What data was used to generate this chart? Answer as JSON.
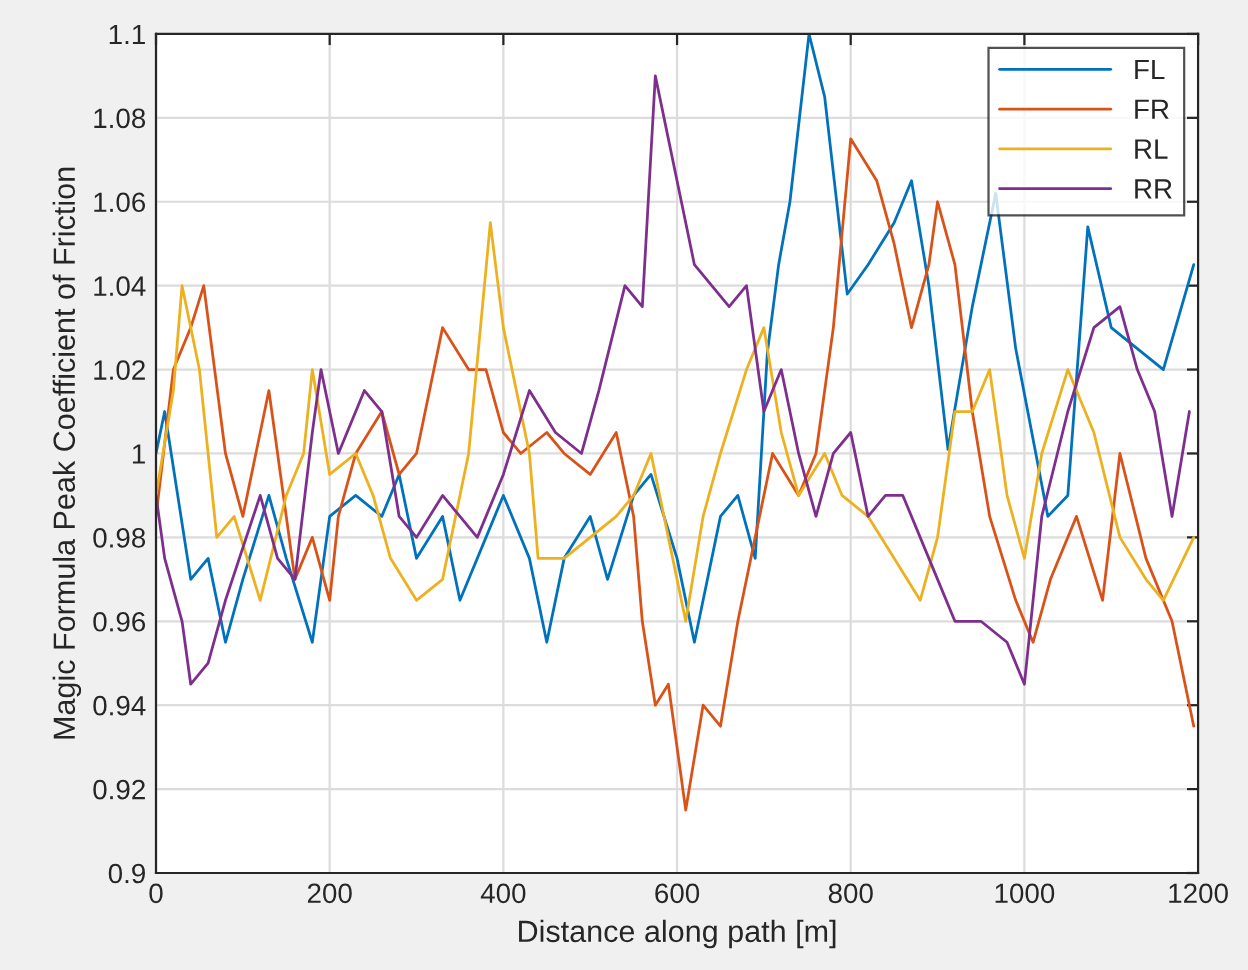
{
  "chart_data": {
    "type": "line",
    "xlabel": "Distance along path [m]",
    "ylabel": "Magic Formula Peak Coefficient of Friction",
    "xlim": [
      0,
      1200
    ],
    "xticks": [
      0,
      200,
      400,
      600,
      800,
      1000,
      1200
    ],
    "ylim": [
      0.9,
      1.1
    ],
    "yticks": [
      0.9,
      0.92,
      0.94,
      0.96,
      0.98,
      1,
      1.02,
      1.04,
      1.06,
      1.08,
      1.1
    ],
    "grid": true,
    "legend": "top right",
    "line_style": "solid",
    "marker": "none",
    "series": [
      {
        "name": "FL",
        "color": "#0072bd",
        "x": [
          0,
          10,
          40,
          60,
          80,
          100,
          130,
          150,
          180,
          200,
          230,
          260,
          280,
          300,
          330,
          350,
          380,
          400,
          430,
          450,
          470,
          500,
          520,
          550,
          570,
          600,
          620,
          650,
          670,
          690,
          704,
          717,
          730,
          752,
          770,
          796,
          820,
          850,
          870,
          890,
          912,
          940,
          967,
          990,
          1027,
          1050,
          1073,
          1100,
          1130,
          1160,
          1195
        ],
        "values": [
          1.0,
          1.01,
          0.97,
          0.975,
          0.955,
          0.97,
          0.99,
          0.975,
          0.955,
          0.985,
          0.99,
          0.985,
          0.995,
          0.975,
          0.985,
          0.965,
          0.98,
          0.99,
          0.975,
          0.955,
          0.975,
          0.985,
          0.97,
          0.99,
          0.995,
          0.975,
          0.955,
          0.985,
          0.99,
          0.975,
          1.024,
          1.045,
          1.06,
          1.1,
          1.085,
          1.038,
          1.045,
          1.055,
          1.065,
          1.04,
          1.001,
          1.035,
          1.062,
          1.025,
          0.985,
          0.99,
          1.054,
          1.03,
          1.025,
          1.02,
          1.045
        ]
      },
      {
        "name": "FR",
        "color": "#d95319",
        "x": [
          0,
          20,
          40,
          55,
          80,
          100,
          130,
          160,
          180,
          200,
          210,
          230,
          260,
          280,
          300,
          330,
          360,
          380,
          400,
          420,
          450,
          470,
          500,
          530,
          550,
          560,
          575,
          590,
          610,
          630,
          650,
          670,
          690,
          710,
          740,
          760,
          780,
          800,
          830,
          850,
          870,
          890,
          900,
          920,
          940,
          960,
          990,
          1010,
          1030,
          1060,
          1090,
          1110,
          1140,
          1170,
          1195
        ],
        "values": [
          0.985,
          1.02,
          1.03,
          1.04,
          1.0,
          0.985,
          1.015,
          0.97,
          0.98,
          0.965,
          0.985,
          1.0,
          1.01,
          0.995,
          1.0,
          1.03,
          1.02,
          1.02,
          1.005,
          1.0,
          1.005,
          1.0,
          0.995,
          1.005,
          0.985,
          0.96,
          0.94,
          0.945,
          0.915,
          0.94,
          0.935,
          0.96,
          0.98,
          1.0,
          0.99,
          1.0,
          1.03,
          1.075,
          1.065,
          1.05,
          1.03,
          1.045,
          1.06,
          1.045,
          1.01,
          0.985,
          0.965,
          0.955,
          0.97,
          0.985,
          0.965,
          1.0,
          0.975,
          0.96,
          0.935
        ]
      },
      {
        "name": "RL",
        "color": "#edb120",
        "x": [
          0,
          20,
          30,
          50,
          70,
          90,
          120,
          150,
          170,
          180,
          200,
          230,
          250,
          270,
          300,
          330,
          360,
          385,
          400,
          430,
          440,
          470,
          500,
          530,
          550,
          570,
          590,
          610,
          630,
          650,
          680,
          700,
          720,
          740,
          770,
          790,
          820,
          850,
          880,
          900,
          920,
          940,
          960,
          980,
          1000,
          1020,
          1050,
          1080,
          1110,
          1140,
          1160,
          1195
        ],
        "values": [
          0.99,
          1.015,
          1.04,
          1.02,
          0.98,
          0.985,
          0.965,
          0.99,
          1.0,
          1.02,
          0.995,
          1.0,
          0.99,
          0.975,
          0.965,
          0.97,
          1.0,
          1.055,
          1.03,
          1.0,
          0.975,
          0.975,
          0.98,
          0.985,
          0.99,
          1.0,
          0.98,
          0.96,
          0.985,
          1.0,
          1.02,
          1.03,
          1.005,
          0.99,
          1.0,
          0.99,
          0.985,
          0.975,
          0.965,
          0.98,
          1.01,
          1.01,
          1.02,
          0.99,
          0.975,
          1.0,
          1.02,
          1.005,
          0.98,
          0.97,
          0.965,
          0.98
        ]
      },
      {
        "name": "RR",
        "color": "#7e2f8e",
        "x": [
          0,
          10,
          30,
          40,
          60,
          80,
          120,
          140,
          160,
          180,
          190,
          210,
          240,
          260,
          280,
          300,
          330,
          350,
          370,
          400,
          430,
          460,
          490,
          510,
          540,
          560,
          575,
          600,
          620,
          640,
          660,
          680,
          700,
          720,
          740,
          760,
          780,
          800,
          820,
          840,
          860,
          890,
          920,
          950,
          980,
          1000,
          1020,
          1050,
          1080,
          1110,
          1130,
          1150,
          1170,
          1190
        ],
        "values": [
          0.99,
          0.975,
          0.96,
          0.945,
          0.95,
          0.965,
          0.99,
          0.975,
          0.97,
          1.005,
          1.02,
          1.0,
          1.015,
          1.01,
          0.985,
          0.98,
          0.99,
          0.985,
          0.98,
          0.995,
          1.015,
          1.005,
          1.0,
          1.015,
          1.04,
          1.035,
          1.09,
          1.065,
          1.045,
          1.04,
          1.035,
          1.04,
          1.01,
          1.02,
          1.0,
          0.985,
          1.0,
          1.005,
          0.985,
          0.99,
          0.99,
          0.975,
          0.96,
          0.96,
          0.955,
          0.945,
          0.985,
          1.01,
          1.03,
          1.035,
          1.02,
          1.01,
          0.985,
          1.01
        ]
      }
    ]
  }
}
